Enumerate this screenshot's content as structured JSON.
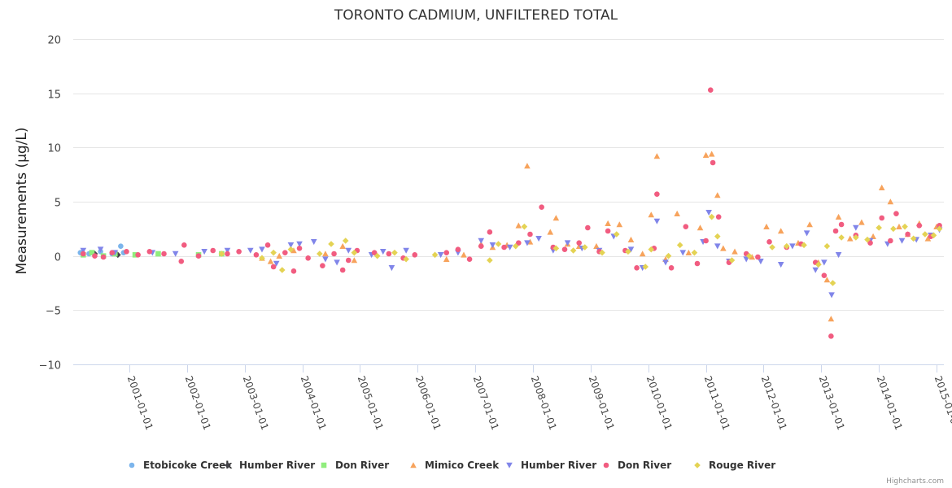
{
  "chart_data": {
    "type": "scatter",
    "title": "TORONTO CADMIUM, UNFILTERED TOTAL",
    "xlabel": "",
    "ylabel": "Measurements (µg/L)",
    "xlim": [
      2000.08,
      2015.13
    ],
    "ylim": [
      -10,
      20
    ],
    "y_ticks": [
      20,
      15,
      10,
      5,
      0,
      -5,
      -10
    ],
    "x_ticks": [
      {
        "value": 2001,
        "label": "2001-01-01"
      },
      {
        "value": 2002,
        "label": "2002-01-01"
      },
      {
        "value": 2003,
        "label": "2003-01-01"
      },
      {
        "value": 2004,
        "label": "2004-01-01"
      },
      {
        "value": 2005,
        "label": "2005-01-01"
      },
      {
        "value": 2006,
        "label": "2006-01-01"
      },
      {
        "value": 2007,
        "label": "2007-01-01"
      },
      {
        "value": 2008,
        "label": "2008-01-01"
      },
      {
        "value": 2009,
        "label": "2009-01-01"
      },
      {
        "value": 2010,
        "label": "2010-01-01"
      },
      {
        "value": 2011,
        "label": "2011-01-01"
      },
      {
        "value": 2012,
        "label": "2012-01-01"
      },
      {
        "value": 2013,
        "label": "2013-01-01"
      },
      {
        "value": 2014,
        "label": "2014-01-01"
      },
      {
        "value": 2015,
        "label": "2015-01-01"
      }
    ],
    "grid": true,
    "legend_position": "bottom",
    "credits": "Highcharts.com",
    "series": [
      {
        "name": "Etobicoke Creek",
        "symbol": "circle",
        "color": "#7cb5ec",
        "points": [
          [
            2000.15,
            0.3
          ],
          [
            2000.3,
            0.2
          ],
          [
            2000.5,
            0.4
          ],
          [
            2000.7,
            0.2
          ],
          [
            2000.85,
            0.9
          ],
          [
            2000.9,
            0.3
          ]
        ]
      },
      {
        "name": "Humber River",
        "symbol": "diamond",
        "color": "#434348",
        "points": [
          [
            2000.4,
            0.2
          ],
          [
            2000.8,
            0.1
          ]
        ]
      },
      {
        "name": "Don River",
        "symbol": "square",
        "color": "#90ed7d",
        "points": [
          [
            2000.2,
            0.1
          ],
          [
            2000.35,
            0.3
          ],
          [
            2000.55,
            0.0
          ],
          [
            2000.75,
            0.2
          ],
          [
            2001.1,
            0.1
          ],
          [
            2001.5,
            0.2
          ],
          [
            2002.2,
            0.1
          ],
          [
            2002.6,
            0.2
          ]
        ]
      },
      {
        "name": "Mimico Creek",
        "symbol": "triangle",
        "color": "#f7a35c",
        "points": [
          [
            2003.3,
            -0.2
          ],
          [
            2003.45,
            -0.5
          ],
          [
            2003.6,
            0.0
          ],
          [
            2003.85,
            0.5
          ],
          [
            2004.4,
            0.2
          ],
          [
            2004.7,
            0.9
          ],
          [
            2004.9,
            -0.4
          ],
          [
            2006.5,
            -0.3
          ],
          [
            2006.8,
            0.1
          ],
          [
            2007.1,
            1.1
          ],
          [
            2007.3,
            0.8
          ],
          [
            2007.55,
            1.0
          ],
          [
            2007.75,
            2.8
          ],
          [
            2007.9,
            8.3
          ],
          [
            2007.95,
            1.3
          ],
          [
            2008.3,
            2.2
          ],
          [
            2008.4,
            3.5
          ],
          [
            2008.6,
            1.1
          ],
          [
            2008.8,
            0.9
          ],
          [
            2009.1,
            0.9
          ],
          [
            2009.3,
            3.0
          ],
          [
            2009.5,
            2.9
          ],
          [
            2009.7,
            1.5
          ],
          [
            2009.9,
            0.2
          ],
          [
            2010.05,
            3.8
          ],
          [
            2010.15,
            9.2
          ],
          [
            2010.3,
            -0.3
          ],
          [
            2010.5,
            3.9
          ],
          [
            2010.7,
            0.3
          ],
          [
            2010.9,
            2.6
          ],
          [
            2011.0,
            9.3
          ],
          [
            2011.1,
            9.4
          ],
          [
            2011.2,
            5.6
          ],
          [
            2011.3,
            0.7
          ],
          [
            2011.5,
            0.4
          ],
          [
            2011.8,
            -0.1
          ],
          [
            2012.05,
            2.7
          ],
          [
            2012.3,
            2.3
          ],
          [
            2012.6,
            1.2
          ],
          [
            2012.8,
            2.9
          ],
          [
            2012.95,
            -0.6
          ],
          [
            2013.1,
            -2.2
          ],
          [
            2013.17,
            -5.8
          ],
          [
            2013.3,
            3.6
          ],
          [
            2013.5,
            1.6
          ],
          [
            2013.7,
            3.1
          ],
          [
            2013.9,
            1.8
          ],
          [
            2014.05,
            6.3
          ],
          [
            2014.2,
            5.0
          ],
          [
            2014.35,
            2.7
          ],
          [
            2014.5,
            2.0
          ],
          [
            2014.7,
            3.0
          ],
          [
            2014.85,
            1.6
          ],
          [
            2015.0,
            2.7
          ]
        ]
      },
      {
        "name": "Humber River",
        "symbol": "triangle-down",
        "color": "#8085e9",
        "points": [
          [
            2000.2,
            0.5
          ],
          [
            2000.5,
            0.6
          ],
          [
            2000.75,
            0.3
          ],
          [
            2001.4,
            0.3
          ],
          [
            2001.8,
            0.2
          ],
          [
            2002.3,
            0.4
          ],
          [
            2002.7,
            0.5
          ],
          [
            2003.1,
            0.5
          ],
          [
            2003.3,
            0.6
          ],
          [
            2003.55,
            -0.7
          ],
          [
            2003.8,
            1.0
          ],
          [
            2003.95,
            1.1
          ],
          [
            2004.2,
            1.3
          ],
          [
            2004.4,
            -0.3
          ],
          [
            2004.6,
            -0.6
          ],
          [
            2004.8,
            0.5
          ],
          [
            2005.2,
            0.1
          ],
          [
            2005.4,
            0.4
          ],
          [
            2005.55,
            -1.1
          ],
          [
            2005.8,
            0.5
          ],
          [
            2006.4,
            0.1
          ],
          [
            2006.7,
            0.3
          ],
          [
            2007.1,
            1.4
          ],
          [
            2007.3,
            1.0
          ],
          [
            2007.6,
            0.8
          ],
          [
            2007.9,
            1.2
          ],
          [
            2008.1,
            1.6
          ],
          [
            2008.35,
            0.5
          ],
          [
            2008.6,
            1.2
          ],
          [
            2008.85,
            0.7
          ],
          [
            2009.15,
            0.5
          ],
          [
            2009.4,
            1.8
          ],
          [
            2009.7,
            0.6
          ],
          [
            2009.9,
            -1.1
          ],
          [
            2010.15,
            3.2
          ],
          [
            2010.3,
            -0.6
          ],
          [
            2010.6,
            0.3
          ],
          [
            2010.95,
            1.3
          ],
          [
            2011.05,
            4.0
          ],
          [
            2011.2,
            0.9
          ],
          [
            2011.4,
            -0.5
          ],
          [
            2011.7,
            -0.3
          ],
          [
            2011.95,
            -0.5
          ],
          [
            2012.3,
            -0.8
          ],
          [
            2012.5,
            0.9
          ],
          [
            2012.75,
            2.1
          ],
          [
            2012.9,
            -1.3
          ],
          [
            2013.05,
            -0.6
          ],
          [
            2013.18,
            -3.6
          ],
          [
            2013.3,
            0.1
          ],
          [
            2013.6,
            2.6
          ],
          [
            2013.85,
            1.4
          ],
          [
            2014.15,
            1.1
          ],
          [
            2014.4,
            1.4
          ],
          [
            2014.65,
            1.5
          ],
          [
            2014.9,
            1.9
          ],
          [
            2015.05,
            2.4
          ]
        ]
      },
      {
        "name": "Don River",
        "symbol": "circle",
        "color": "#f15c80",
        "points": [
          [
            2000.2,
            0.2
          ],
          [
            2000.4,
            0.0
          ],
          [
            2000.55,
            -0.1
          ],
          [
            2000.7,
            0.3
          ],
          [
            2000.95,
            0.4
          ],
          [
            2001.15,
            0.1
          ],
          [
            2001.35,
            0.4
          ],
          [
            2001.6,
            0.2
          ],
          [
            2001.9,
            -0.5
          ],
          [
            2001.95,
            1.0
          ],
          [
            2002.2,
            0.0
          ],
          [
            2002.45,
            0.5
          ],
          [
            2002.7,
            0.2
          ],
          [
            2002.9,
            0.4
          ],
          [
            2003.2,
            0.1
          ],
          [
            2003.4,
            1.0
          ],
          [
            2003.5,
            -1.0
          ],
          [
            2003.7,
            0.3
          ],
          [
            2003.85,
            -1.4
          ],
          [
            2003.95,
            0.7
          ],
          [
            2004.1,
            -0.2
          ],
          [
            2004.35,
            -0.9
          ],
          [
            2004.55,
            0.2
          ],
          [
            2004.7,
            -1.3
          ],
          [
            2004.8,
            -0.4
          ],
          [
            2004.95,
            0.5
          ],
          [
            2005.25,
            0.3
          ],
          [
            2005.5,
            0.2
          ],
          [
            2005.75,
            -0.2
          ],
          [
            2005.95,
            0.1
          ],
          [
            2006.5,
            0.3
          ],
          [
            2006.7,
            0.6
          ],
          [
            2006.9,
            -0.3
          ],
          [
            2007.1,
            0.9
          ],
          [
            2007.25,
            2.2
          ],
          [
            2007.5,
            0.8
          ],
          [
            2007.75,
            1.2
          ],
          [
            2007.95,
            2.0
          ],
          [
            2008.15,
            4.5
          ],
          [
            2008.35,
            0.8
          ],
          [
            2008.55,
            0.6
          ],
          [
            2008.8,
            1.2
          ],
          [
            2008.95,
            2.6
          ],
          [
            2009.15,
            0.4
          ],
          [
            2009.3,
            2.3
          ],
          [
            2009.6,
            0.5
          ],
          [
            2009.8,
            -1.1
          ],
          [
            2010.1,
            0.7
          ],
          [
            2010.15,
            5.7
          ],
          [
            2010.4,
            -1.1
          ],
          [
            2010.65,
            2.7
          ],
          [
            2010.85,
            -0.7
          ],
          [
            2011.0,
            1.4
          ],
          [
            2011.08,
            15.3
          ],
          [
            2011.12,
            8.6
          ],
          [
            2011.22,
            3.6
          ],
          [
            2011.4,
            -0.6
          ],
          [
            2011.7,
            0.2
          ],
          [
            2011.9,
            -0.1
          ],
          [
            2012.1,
            1.3
          ],
          [
            2012.4,
            0.8
          ],
          [
            2012.65,
            1.1
          ],
          [
            2012.9,
            -0.6
          ],
          [
            2013.05,
            -1.8
          ],
          [
            2013.17,
            -7.4
          ],
          [
            2013.25,
            2.3
          ],
          [
            2013.35,
            2.9
          ],
          [
            2013.6,
            1.9
          ],
          [
            2013.85,
            1.2
          ],
          [
            2014.05,
            3.5
          ],
          [
            2014.2,
            1.4
          ],
          [
            2014.3,
            3.9
          ],
          [
            2014.5,
            2.0
          ],
          [
            2014.7,
            2.8
          ],
          [
            2014.9,
            1.8
          ],
          [
            2015.05,
            2.8
          ]
        ]
      },
      {
        "name": "Rouge River",
        "symbol": "diamond",
        "color": "#e4d354",
        "points": [
          [
            2002.6,
            0.2
          ],
          [
            2003.3,
            -0.2
          ],
          [
            2003.5,
            0.3
          ],
          [
            2003.65,
            -1.3
          ],
          [
            2003.8,
            0.6
          ],
          [
            2004.3,
            0.2
          ],
          [
            2004.5,
            1.1
          ],
          [
            2004.75,
            1.4
          ],
          [
            2004.9,
            0.3
          ],
          [
            2005.3,
            0.0
          ],
          [
            2005.6,
            0.3
          ],
          [
            2005.8,
            -0.3
          ],
          [
            2006.3,
            0.1
          ],
          [
            2007.25,
            -0.4
          ],
          [
            2007.4,
            1.1
          ],
          [
            2007.7,
            0.9
          ],
          [
            2007.85,
            2.7
          ],
          [
            2008.4,
            0.7
          ],
          [
            2008.7,
            0.5
          ],
          [
            2008.9,
            0.8
          ],
          [
            2009.2,
            0.3
          ],
          [
            2009.45,
            2.0
          ],
          [
            2009.65,
            0.4
          ],
          [
            2009.95,
            -1.0
          ],
          [
            2010.05,
            0.6
          ],
          [
            2010.35,
            0.0
          ],
          [
            2010.55,
            1.0
          ],
          [
            2010.8,
            0.3
          ],
          [
            2011.1,
            3.6
          ],
          [
            2011.2,
            1.8
          ],
          [
            2011.45,
            -0.4
          ],
          [
            2011.75,
            0.0
          ],
          [
            2012.15,
            0.8
          ],
          [
            2012.4,
            0.9
          ],
          [
            2012.7,
            1.0
          ],
          [
            2012.95,
            -0.8
          ],
          [
            2013.1,
            0.9
          ],
          [
            2013.2,
            -2.5
          ],
          [
            2013.35,
            1.7
          ],
          [
            2013.6,
            1.7
          ],
          [
            2013.8,
            1.5
          ],
          [
            2014.0,
            2.6
          ],
          [
            2014.25,
            2.5
          ],
          [
            2014.45,
            2.7
          ],
          [
            2014.6,
            1.6
          ],
          [
            2014.8,
            2.0
          ],
          [
            2014.95,
            1.9
          ],
          [
            2015.05,
            2.5
          ]
        ]
      }
    ]
  }
}
